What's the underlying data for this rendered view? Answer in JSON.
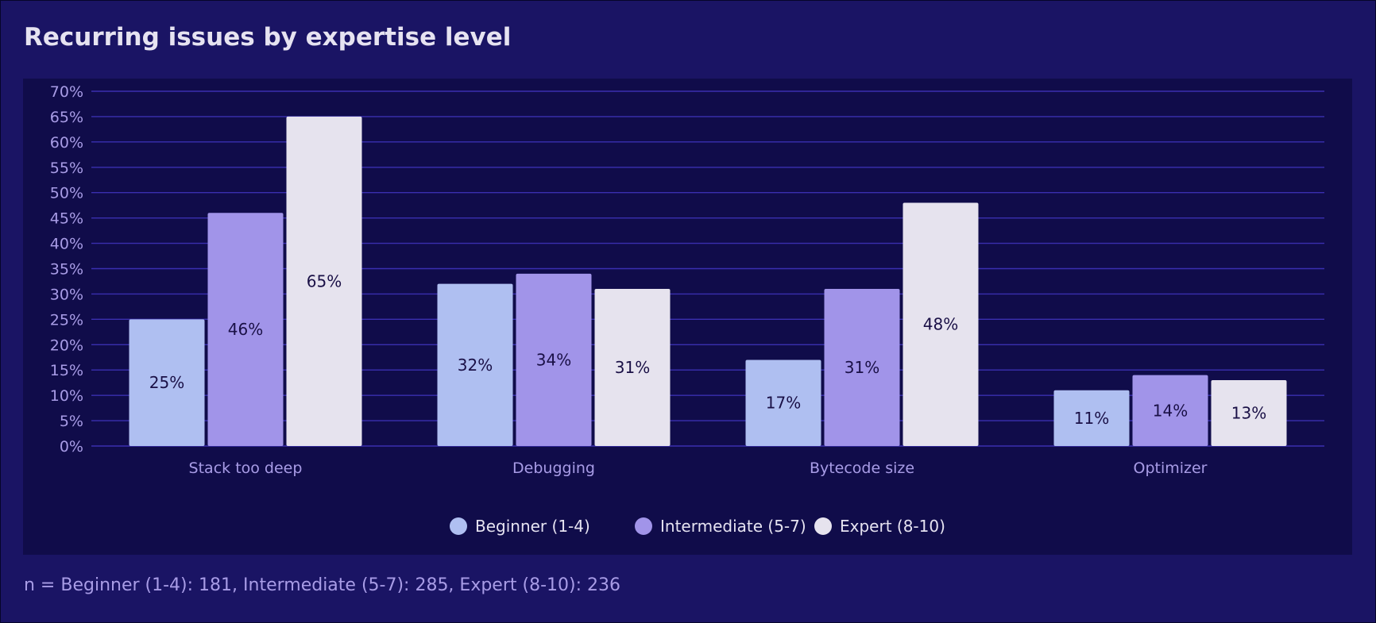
{
  "title": "Recurring issues by expertise level",
  "footnote": "n = Beginner (1-4): 181, Intermediate (5-7): 285, Expert (8-10): 236",
  "colors": {
    "background": "#1a1464",
    "panel": "#100c4a",
    "gridline": "#3a2fb0",
    "text_muted": "#a89ce6",
    "text_light": "#e6e3f1",
    "label_dark": "#1a1046"
  },
  "chart_data": {
    "type": "bar",
    "title": "Recurring issues by expertise level",
    "categories": [
      "Stack too deep",
      "Debugging",
      "Bytecode size",
      "Optimizer"
    ],
    "series": [
      {
        "name": "Beginner (1-4)",
        "color": "#afbff1",
        "values": [
          25,
          32,
          17,
          11
        ],
        "labels": [
          "25%",
          "32%",
          "17%",
          "11%"
        ]
      },
      {
        "name": "Intermediate (5-7)",
        "color": "#a194e9",
        "values": [
          46,
          34,
          31,
          14
        ],
        "labels": [
          "46%",
          "34%",
          "31%",
          "14%"
        ]
      },
      {
        "name": "Expert (8-10)",
        "color": "#e6e3ee",
        "values": [
          65,
          31,
          48,
          13
        ],
        "labels": [
          "65%",
          "31%",
          "48%",
          "13%"
        ]
      }
    ],
    "ylim": [
      0,
      70
    ],
    "yticks": [
      "0%",
      "5%",
      "10%",
      "15%",
      "20%",
      "25%",
      "30%",
      "35%",
      "40%",
      "45%",
      "50%",
      "55%",
      "60%",
      "65%",
      "70%"
    ],
    "grid": true,
    "legend_position": "bottom-center",
    "xlabel": "",
    "ylabel": ""
  }
}
